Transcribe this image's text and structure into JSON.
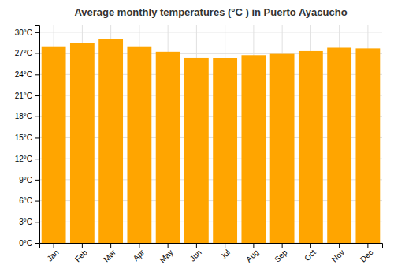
{
  "chart_data": {
    "type": "bar",
    "title": "Average monthly temperatures (°C ) in Puerto Ayacucho",
    "categories": [
      "Jan",
      "Feb",
      "Mar",
      "Apr",
      "May",
      "Jun",
      "Jul",
      "Aug",
      "Sep",
      "Oct",
      "Nov",
      "Dec"
    ],
    "values": [
      28.0,
      28.5,
      29.0,
      28.0,
      27.2,
      26.4,
      26.3,
      26.7,
      27.0,
      27.3,
      27.8,
      27.7
    ],
    "color": "#FFA500",
    "ylim": [
      0,
      31
    ],
    "yticks": [
      {
        "value": 0,
        "label": "0°C"
      },
      {
        "value": 3,
        "label": "3°C"
      },
      {
        "value": 6,
        "label": "6°C"
      },
      {
        "value": 9,
        "label": "9°C"
      },
      {
        "value": 12,
        "label": "12°C"
      },
      {
        "value": 15,
        "label": "15°C"
      },
      {
        "value": 18,
        "label": "18°C"
      },
      {
        "value": 21,
        "label": "21°C"
      },
      {
        "value": 24,
        "label": "24°C"
      },
      {
        "value": 27,
        "label": "27°C"
      },
      {
        "value": 30,
        "label": "30°C"
      }
    ],
    "grid": true
  }
}
